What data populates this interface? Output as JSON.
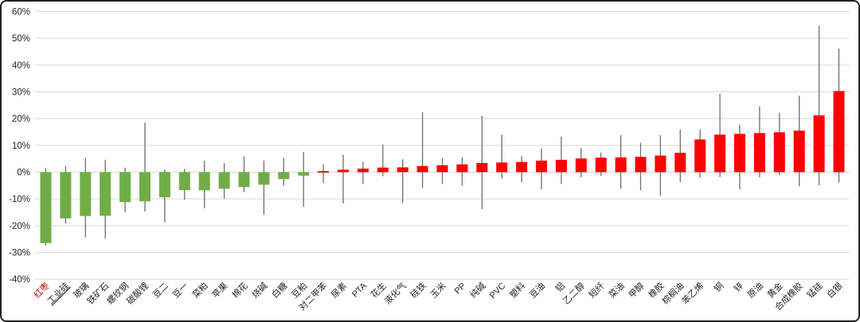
{
  "chart": {
    "background": "#ffffff",
    "frame_border_color": "#1f1f1f",
    "grid_color": "#d9d9d9",
    "whisker_color": "#6e6e6e",
    "up_color": "#ff0000",
    "down_color": "#70ad47",
    "axis_text_color": "#262626",
    "highlight_label_color": "#c00000"
  },
  "chart_data": {
    "type": "candlestick-range-bar",
    "title": "",
    "xlabel": "",
    "ylabel": "",
    "ylim": [
      -40,
      60
    ],
    "y_tick_step": 10,
    "grid": true,
    "legend": "none",
    "y_ticks": [
      "60%",
      "50%",
      "40%",
      "30%",
      "20%",
      "10%",
      "0%",
      "-10%",
      "-20%",
      "-30%",
      "-40%"
    ],
    "open_value_all_bars": 0,
    "series": [
      {
        "name": "红枣",
        "close": -26.5,
        "high": 1.5,
        "low": -27.5,
        "direction": "down",
        "label_style": "red"
      },
      {
        "name": "工业硅",
        "close": -17.3,
        "high": 2.2,
        "low": -19.2,
        "direction": "down",
        "label_style": "underline"
      },
      {
        "name": "玻璃",
        "close": -16.4,
        "high": 5.3,
        "low": -24.4,
        "direction": "down",
        "label_style": "normal"
      },
      {
        "name": "铁矿石",
        "close": -16.3,
        "high": 4.6,
        "low": -24.9,
        "direction": "down",
        "label_style": "normal"
      },
      {
        "name": "螺纹钢",
        "close": -11.2,
        "high": 1.7,
        "low": -15.0,
        "direction": "down",
        "label_style": "normal"
      },
      {
        "name": "碳酸锂",
        "close": -10.9,
        "high": 18.5,
        "low": -14.8,
        "direction": "down",
        "label_style": "normal"
      },
      {
        "name": "豆二",
        "close": -9.4,
        "high": 0.9,
        "low": -18.7,
        "direction": "down",
        "label_style": "normal"
      },
      {
        "name": "豆一",
        "close": -6.7,
        "high": 1.2,
        "low": -10.3,
        "direction": "down",
        "label_style": "normal"
      },
      {
        "name": "菜粕",
        "close": -6.8,
        "high": 4.3,
        "low": -13.5,
        "direction": "down",
        "label_style": "normal"
      },
      {
        "name": "苹果",
        "close": -6.2,
        "high": 3.4,
        "low": -10.0,
        "direction": "down",
        "label_style": "normal"
      },
      {
        "name": "棉花",
        "close": -5.6,
        "high": 5.9,
        "low": -7.4,
        "direction": "down",
        "label_style": "normal"
      },
      {
        "name": "烧碱",
        "close": -4.7,
        "high": 4.3,
        "low": -16.0,
        "direction": "down",
        "label_style": "normal"
      },
      {
        "name": "白糖",
        "close": -2.6,
        "high": 5.3,
        "low": -5.1,
        "direction": "down",
        "label_style": "normal"
      },
      {
        "name": "豆粕",
        "close": -1.3,
        "high": 7.6,
        "low": -13.0,
        "direction": "down",
        "label_style": "normal"
      },
      {
        "name": "对二甲苯",
        "close": 0.4,
        "high": 2.9,
        "low": -4.1,
        "direction": "up",
        "label_style": "normal"
      },
      {
        "name": "尿素",
        "close": 0.9,
        "high": 6.5,
        "low": -11.8,
        "direction": "up",
        "label_style": "normal"
      },
      {
        "name": "PTA",
        "close": 1.3,
        "high": 3.9,
        "low": -4.4,
        "direction": "up",
        "label_style": "normal"
      },
      {
        "name": "花生",
        "close": 1.7,
        "high": 10.3,
        "low": -1.5,
        "direction": "up",
        "label_style": "normal"
      },
      {
        "name": "液化气",
        "close": 1.8,
        "high": 4.8,
        "low": -11.5,
        "direction": "up",
        "label_style": "normal"
      },
      {
        "name": "硅铁",
        "close": 2.3,
        "high": 22.4,
        "low": -5.9,
        "direction": "up",
        "label_style": "normal"
      },
      {
        "name": "玉米",
        "close": 2.6,
        "high": 5.3,
        "low": -4.4,
        "direction": "up",
        "label_style": "normal"
      },
      {
        "name": "PP",
        "close": 2.9,
        "high": 5.5,
        "low": -5.1,
        "direction": "up",
        "label_style": "normal"
      },
      {
        "name": "纯碱",
        "close": 3.4,
        "high": 21.0,
        "low": -13.8,
        "direction": "up",
        "label_style": "normal"
      },
      {
        "name": "PVC",
        "close": 3.6,
        "high": 14.0,
        "low": -2.5,
        "direction": "up",
        "label_style": "normal"
      },
      {
        "name": "塑料",
        "close": 3.8,
        "high": 6.0,
        "low": -3.8,
        "direction": "up",
        "label_style": "normal"
      },
      {
        "name": "豆油",
        "close": 4.3,
        "high": 8.8,
        "low": -6.5,
        "direction": "up",
        "label_style": "normal"
      },
      {
        "name": "铝",
        "close": 4.6,
        "high": 13.3,
        "low": -4.4,
        "direction": "up",
        "label_style": "normal"
      },
      {
        "name": "乙二醇",
        "close": 5.1,
        "high": 9.1,
        "low": -1.9,
        "direction": "up",
        "label_style": "normal"
      },
      {
        "name": "短纤",
        "close": 5.4,
        "high": 7.3,
        "low": -1.4,
        "direction": "up",
        "label_style": "normal"
      },
      {
        "name": "菜油",
        "close": 5.5,
        "high": 13.8,
        "low": -6.2,
        "direction": "up",
        "label_style": "normal"
      },
      {
        "name": "甲醇",
        "close": 5.7,
        "high": 11.0,
        "low": -6.8,
        "direction": "up",
        "label_style": "normal"
      },
      {
        "name": "橡胶",
        "close": 6.2,
        "high": 13.8,
        "low": -8.7,
        "direction": "up",
        "label_style": "normal"
      },
      {
        "name": "棕榈油",
        "close": 7.2,
        "high": 15.9,
        "low": -3.8,
        "direction": "up",
        "label_style": "normal"
      },
      {
        "name": "苯乙烯",
        "close": 12.2,
        "high": 15.9,
        "low": -2.1,
        "direction": "up",
        "label_style": "normal"
      },
      {
        "name": "铜",
        "close": 14.0,
        "high": 29.3,
        "low": -1.9,
        "direction": "up",
        "label_style": "normal"
      },
      {
        "name": "锌",
        "close": 14.3,
        "high": 17.7,
        "low": -6.5,
        "direction": "up",
        "label_style": "normal"
      },
      {
        "name": "原油",
        "close": 14.6,
        "high": 24.6,
        "low": -1.9,
        "direction": "up",
        "label_style": "normal"
      },
      {
        "name": "黄金",
        "close": 14.9,
        "high": 22.2,
        "low": -1.1,
        "direction": "up",
        "label_style": "normal"
      },
      {
        "name": "合成橡胶",
        "close": 15.5,
        "high": 28.5,
        "low": -5.3,
        "direction": "up",
        "label_style": "normal"
      },
      {
        "name": "锰硅",
        "close": 21.2,
        "high": 54.7,
        "low": -4.9,
        "direction": "up",
        "label_style": "normal"
      },
      {
        "name": "白银",
        "close": 30.3,
        "high": 46.2,
        "low": -3.9,
        "direction": "up",
        "label_style": "normal"
      }
    ]
  }
}
